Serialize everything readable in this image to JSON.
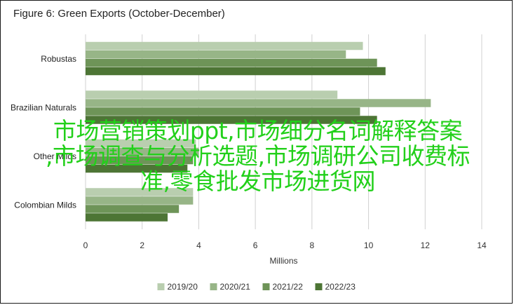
{
  "chart_data": {
    "type": "bar",
    "orientation": "horizontal",
    "title": "Figure 6: Green Exports (October-December)",
    "xlabel": "Millions",
    "ylabel": "",
    "xlim": [
      0,
      14
    ],
    "xticks": [
      0,
      2,
      4,
      6,
      8,
      10,
      12,
      14
    ],
    "grid": "vertical",
    "legend_position": "bottom",
    "categories": [
      "Robustas",
      "Brazilian Naturals",
      "Other Milds",
      "Colombian Milds"
    ],
    "series": [
      {
        "name": "2019/20",
        "color": "#b9ceaf",
        "values": [
          9.8,
          8.9,
          3.9,
          3.8
        ]
      },
      {
        "name": "2020/21",
        "color": "#97b587",
        "values": [
          9.2,
          12.2,
          4.0,
          3.8
        ]
      },
      {
        "name": "2021/22",
        "color": "#6e9458",
        "values": [
          10.3,
          9.7,
          3.8,
          3.3
        ]
      },
      {
        "name": "2022/23",
        "color": "#4d7535",
        "values": [
          10.6,
          10.3,
          3.6,
          2.9
        ]
      }
    ]
  },
  "overlay": {
    "color": "#22d01a",
    "lines": [
      "市场营销策划ppt,市场细分名词解释答案",
      ",市场调查与分析选题,市场调研公司收费标",
      "准,零食批发市场进货网"
    ]
  }
}
